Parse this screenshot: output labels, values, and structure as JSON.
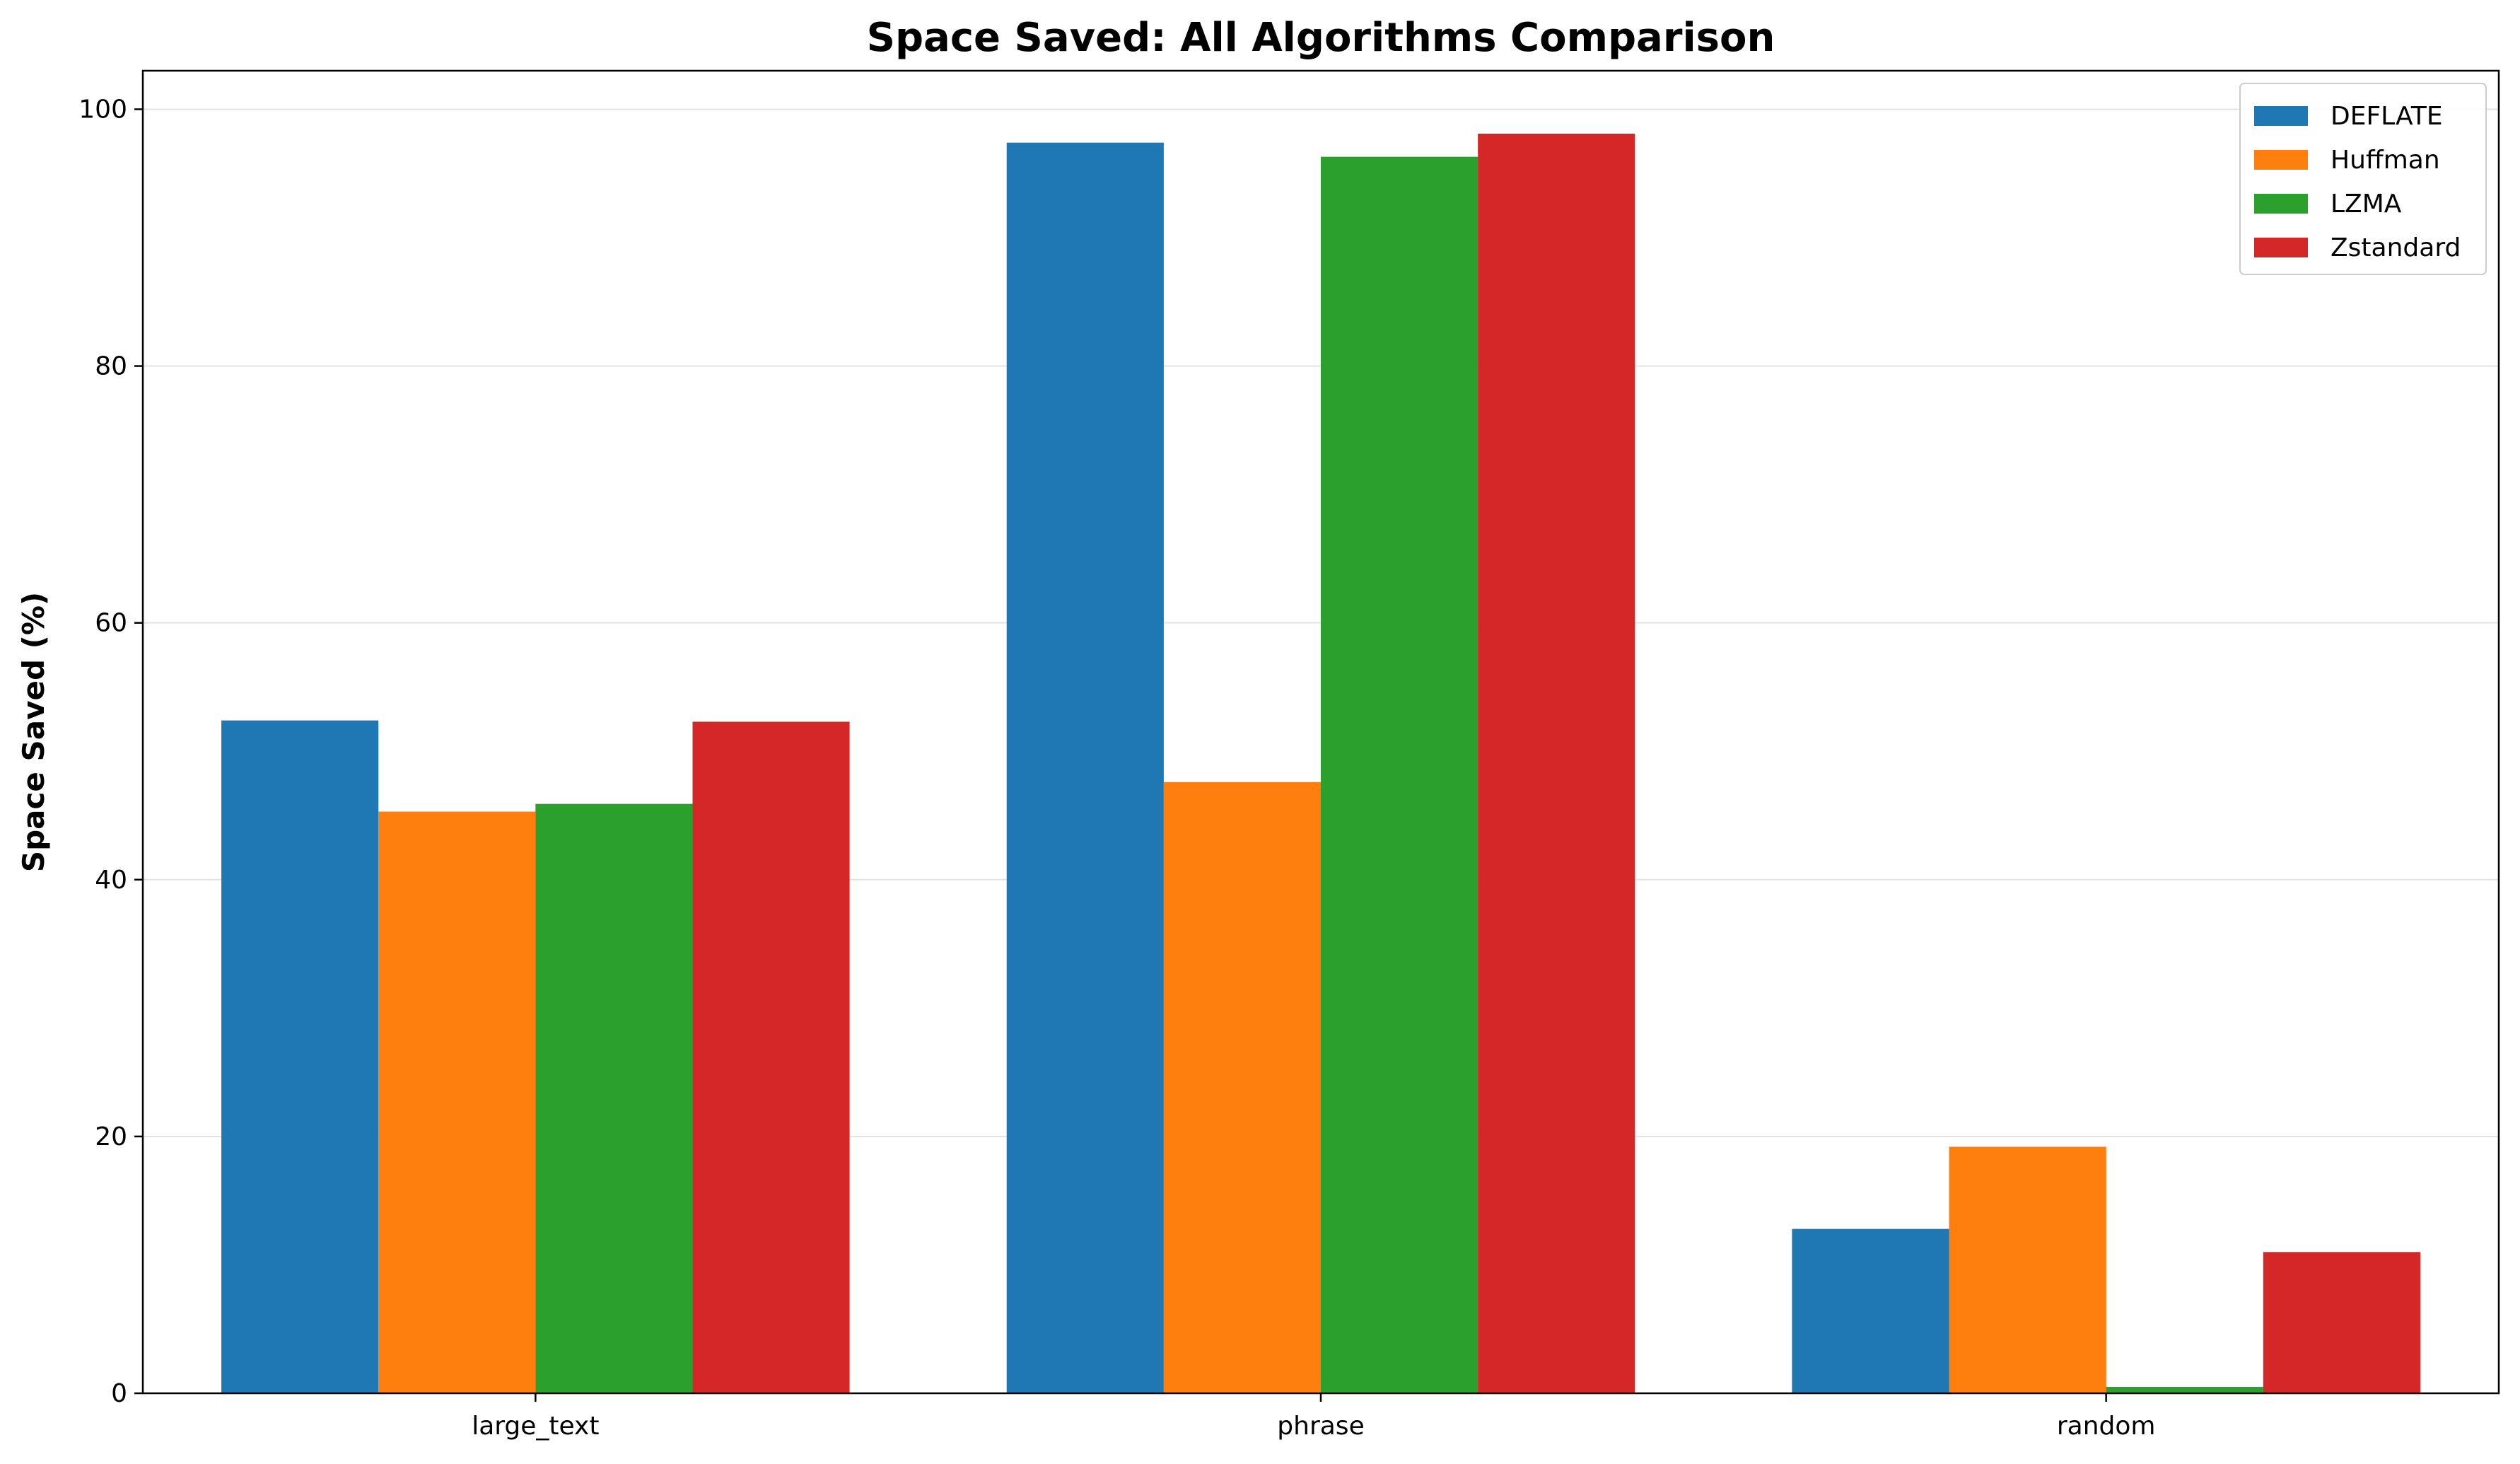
{
  "chart_data": {
    "type": "bar",
    "title": "Space Saved: All Algorithms Comparison",
    "xlabel": "",
    "ylabel": "Space Saved (%)",
    "categories": [
      "large_text",
      "phrase",
      "random"
    ],
    "series": [
      {
        "name": "DEFLATE",
        "color": "#1f77b4",
        "values": [
          52.4,
          97.4,
          12.8
        ]
      },
      {
        "name": "Huffman",
        "color": "#ff7f0e",
        "values": [
          45.3,
          47.6,
          19.2
        ]
      },
      {
        "name": "LZMA",
        "color": "#2ca02c",
        "values": [
          45.9,
          96.3,
          0.5
        ]
      },
      {
        "name": "Zstandard",
        "color": "#d62728",
        "values": [
          52.3,
          98.1,
          11.0
        ]
      }
    ],
    "ylim": [
      0,
      103
    ],
    "yticks": [
      0,
      20,
      40,
      60,
      80,
      100
    ],
    "grid": true,
    "legend_position": "top-right"
  }
}
